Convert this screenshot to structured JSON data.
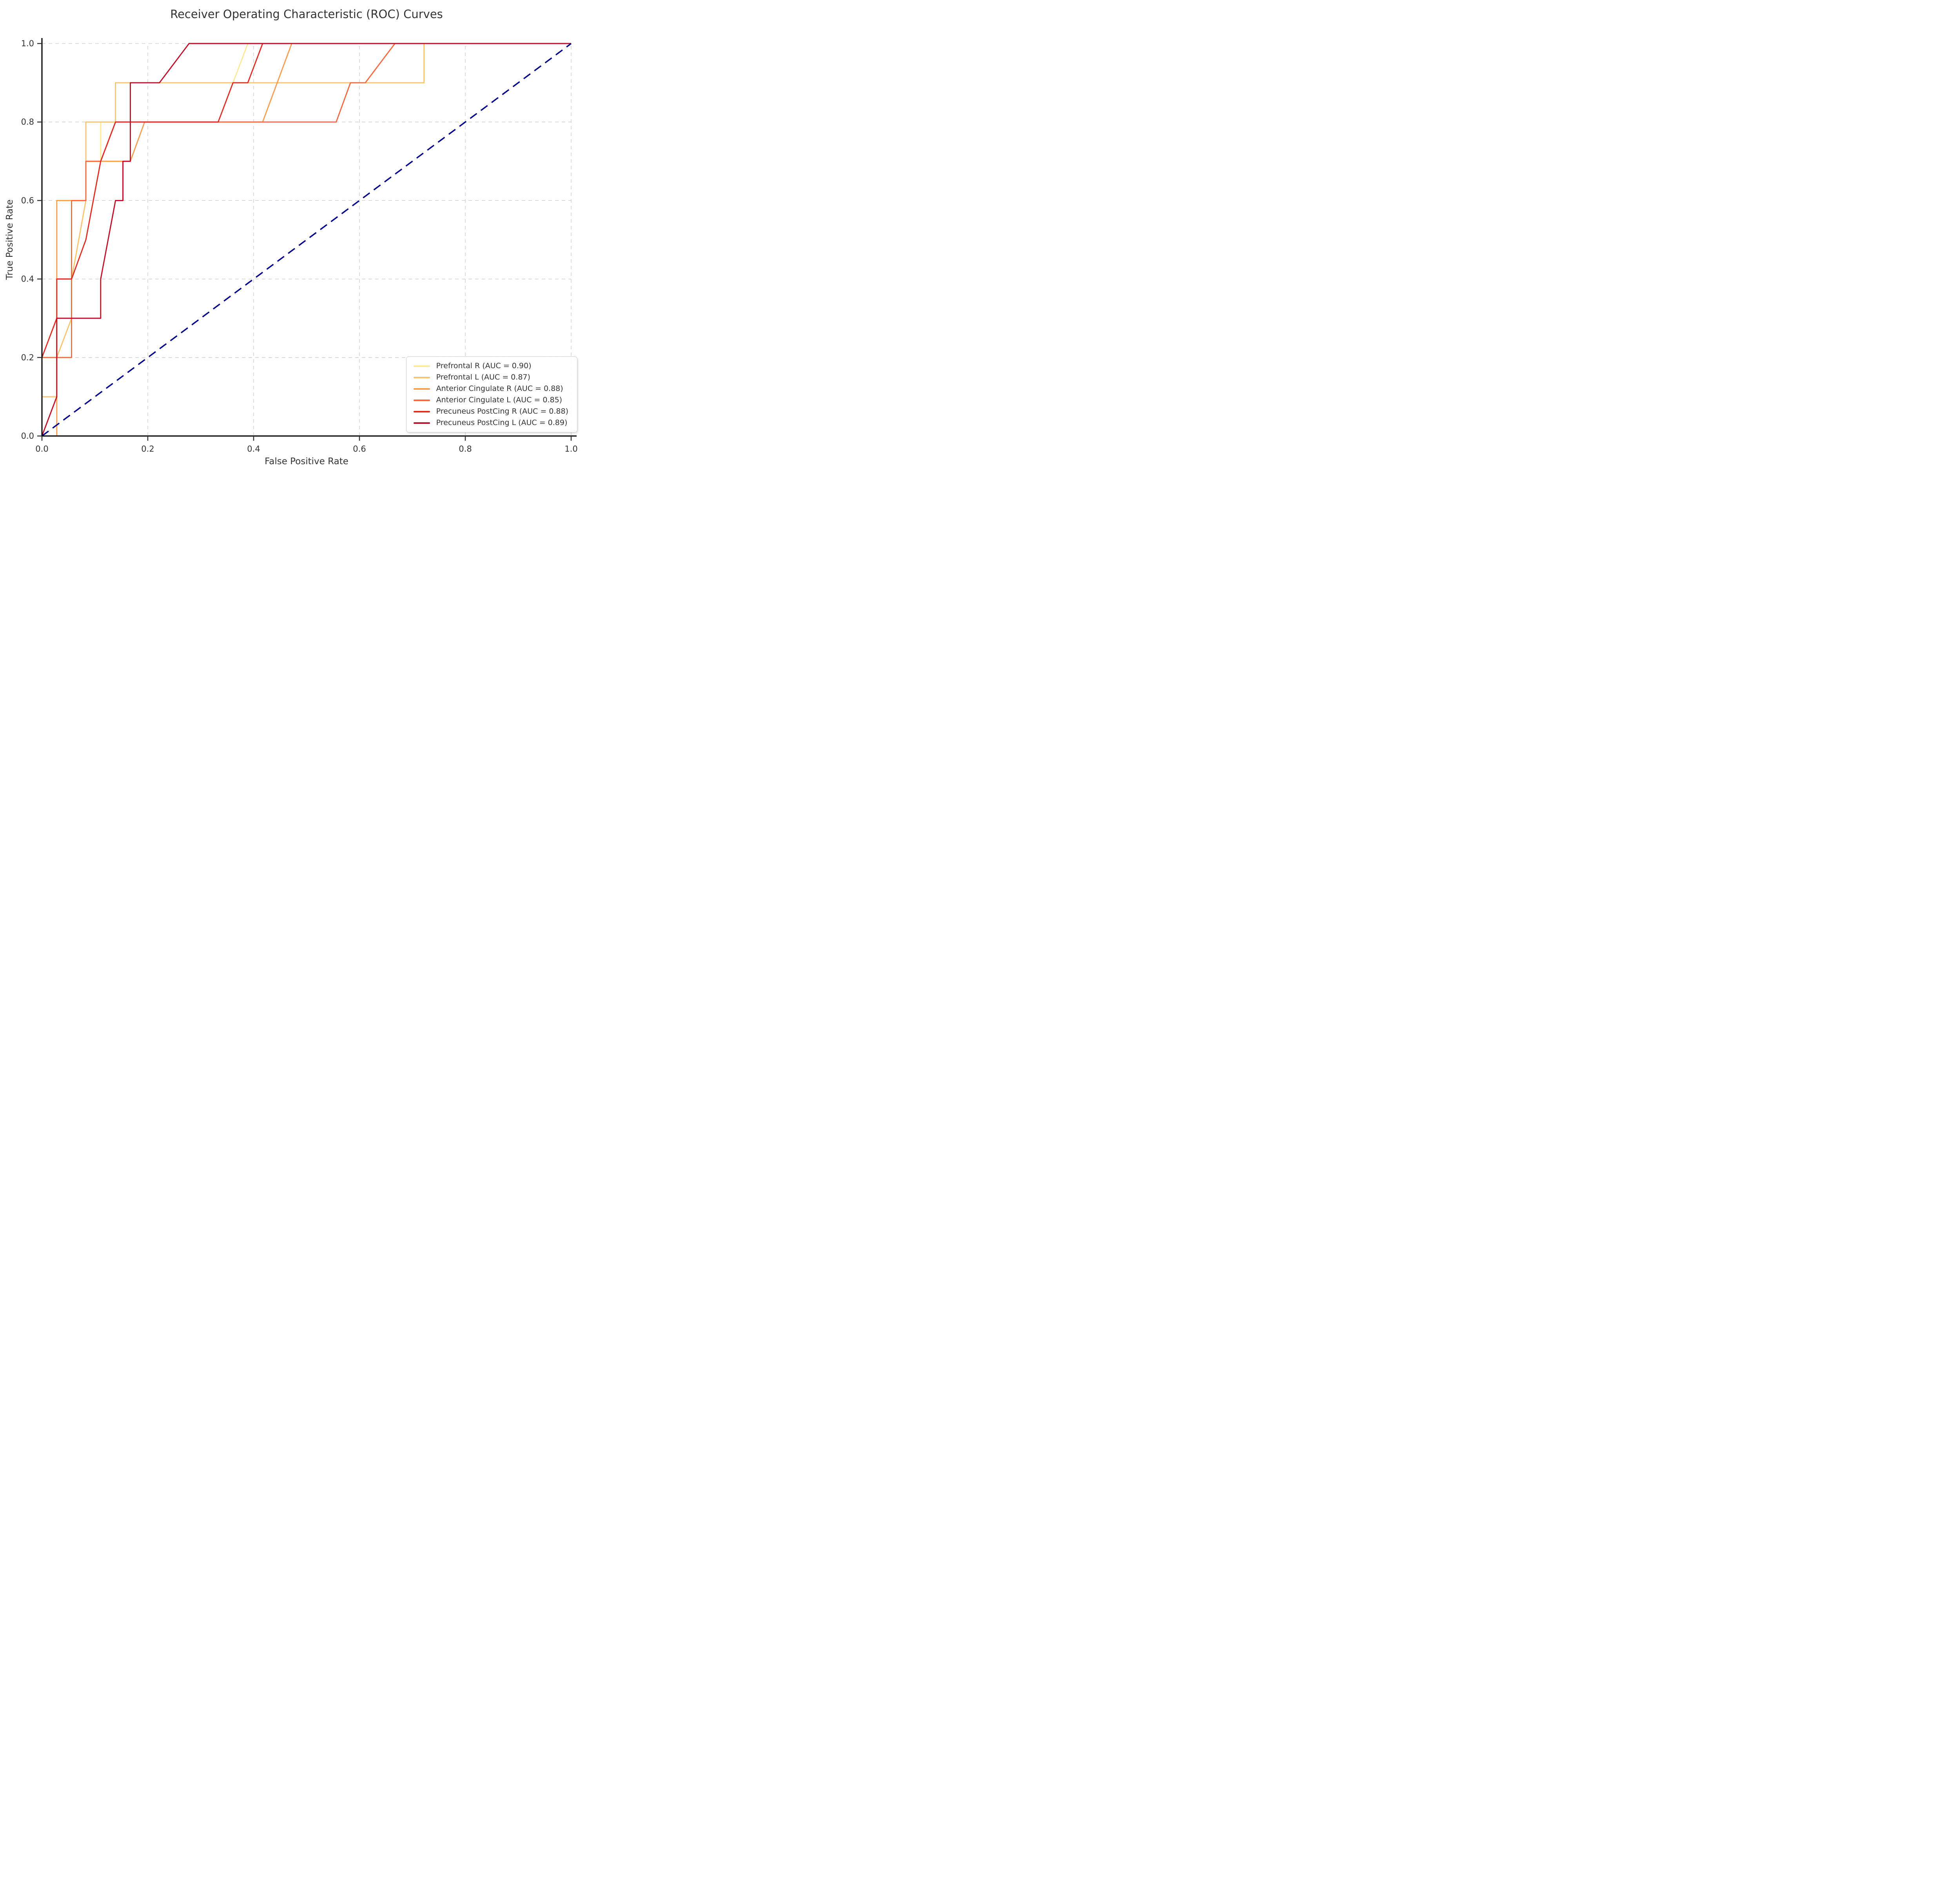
{
  "figure": {
    "background": "#ffffff"
  },
  "axes": {
    "spine_color": "#000000",
    "tick_color": "#333333",
    "grid_color": "#c9c9c9",
    "tick_values": [
      0,
      0.2,
      0.4,
      0.6,
      0.8,
      1.0
    ],
    "xtick_labels": [
      "0.0",
      "0.2",
      "0.4",
      "0.6",
      "0.8",
      "1.0"
    ],
    "ytick_labels": [
      "0.0",
      "0.2",
      "0.4",
      "0.6",
      "0.8",
      "1.0"
    ]
  },
  "legend": {
    "position": "lower right",
    "items": [
      {
        "label": "Prefrontal R (AUC = 0.90)",
        "color": "#FDE996"
      },
      {
        "label": "Prefrontal L (AUC = 0.87)",
        "color": "#FBC46C"
      },
      {
        "label": "Anterior Cingulate R (AUC = 0.88)",
        "color": "#FB9D4E"
      },
      {
        "label": "Anterior Cingulate L (AUC = 0.85)",
        "color": "#F4693F"
      },
      {
        "label": "Precuneus PostCing R (AUC = 0.88)",
        "color": "#E02B20"
      },
      {
        "label": "Precuneus PostCing L (AUC = 0.89)",
        "color": "#C00E27"
      }
    ]
  },
  "chart_data": {
    "type": "line",
    "title": "Receiver Operating Characteristic (ROC) Curves",
    "xlabel": "False Positive Rate",
    "ylabel": "True Positive Rate",
    "xlim": [
      0,
      1
    ],
    "ylim": [
      0,
      1
    ],
    "grid": true,
    "grid_style": "dashed",
    "legend_position": "lower right",
    "reference_line": {
      "name": "chance-diagonal",
      "color": "#00008B",
      "style": "dashed",
      "points": [
        [
          0,
          0
        ],
        [
          1,
          1
        ]
      ]
    },
    "series": [
      {
        "name": "Prefrontal R",
        "auc": 0.9,
        "color": "#FDE996",
        "points": [
          [
            0,
            0
          ],
          [
            0,
            0.1
          ],
          [
            0.028,
            0.1
          ],
          [
            0.028,
            0.4
          ],
          [
            0.056,
            0.4
          ],
          [
            0.056,
            0.6
          ],
          [
            0.083,
            0.6
          ],
          [
            0.083,
            0.7
          ],
          [
            0.111,
            0.7
          ],
          [
            0.111,
            0.8
          ],
          [
            0.139,
            0.8
          ],
          [
            0.139,
            0.9
          ],
          [
            0.361,
            0.9
          ],
          [
            0.389,
            1.0
          ],
          [
            1,
            1
          ]
        ]
      },
      {
        "name": "Prefrontal L",
        "auc": 0.87,
        "color": "#FBC46C",
        "points": [
          [
            0,
            0
          ],
          [
            0,
            0.1
          ],
          [
            0.028,
            0.1
          ],
          [
            0.028,
            0.2
          ],
          [
            0.056,
            0.3
          ],
          [
            0.056,
            0.4
          ],
          [
            0.083,
            0.6
          ],
          [
            0.083,
            0.8
          ],
          [
            0.139,
            0.8
          ],
          [
            0.139,
            0.9
          ],
          [
            0.722,
            0.9
          ],
          [
            0.722,
            1.0
          ],
          [
            1,
            1
          ]
        ]
      },
      {
        "name": "Anterior Cingulate R",
        "auc": 0.88,
        "color": "#FB9D4E",
        "points": [
          [
            0,
            0
          ],
          [
            0.028,
            0
          ],
          [
            0.028,
            0.6
          ],
          [
            0.083,
            0.6
          ],
          [
            0.083,
            0.7
          ],
          [
            0.167,
            0.7
          ],
          [
            0.194,
            0.8
          ],
          [
            0.417,
            0.8
          ],
          [
            0.472,
            1.0
          ],
          [
            1,
            1
          ]
        ]
      },
      {
        "name": "Anterior Cingulate L",
        "auc": 0.85,
        "color": "#F4693F",
        "points": [
          [
            0,
            0
          ],
          [
            0,
            0.2
          ],
          [
            0.056,
            0.2
          ],
          [
            0.056,
            0.6
          ],
          [
            0.083,
            0.6
          ],
          [
            0.083,
            0.7
          ],
          [
            0.111,
            0.7
          ],
          [
            0.139,
            0.8
          ],
          [
            0.556,
            0.8
          ],
          [
            0.583,
            0.9
          ],
          [
            0.611,
            0.9
          ],
          [
            0.667,
            1.0
          ],
          [
            1,
            1
          ]
        ]
      },
      {
        "name": "Precuneus PostCing R",
        "auc": 0.88,
        "color": "#E02B20",
        "points": [
          [
            0,
            0
          ],
          [
            0,
            0.2
          ],
          [
            0.028,
            0.3
          ],
          [
            0.028,
            0.4
          ],
          [
            0.056,
            0.4
          ],
          [
            0.083,
            0.5
          ],
          [
            0.111,
            0.7
          ],
          [
            0.139,
            0.8
          ],
          [
            0.333,
            0.8
          ],
          [
            0.361,
            0.9
          ],
          [
            0.389,
            0.9
          ],
          [
            0.417,
            1.0
          ],
          [
            1,
            1
          ]
        ]
      },
      {
        "name": "Precuneus PostCing L",
        "auc": 0.89,
        "color": "#C00E27",
        "points": [
          [
            0,
            0
          ],
          [
            0.028,
            0.1
          ],
          [
            0.028,
            0.3
          ],
          [
            0.111,
            0.3
          ],
          [
            0.111,
            0.4
          ],
          [
            0.139,
            0.6
          ],
          [
            0.153,
            0.6
          ],
          [
            0.153,
            0.7
          ],
          [
            0.167,
            0.7
          ],
          [
            0.167,
            0.9
          ],
          [
            0.222,
            0.9
          ],
          [
            0.278,
            1.0
          ],
          [
            1,
            1
          ]
        ]
      }
    ]
  }
}
